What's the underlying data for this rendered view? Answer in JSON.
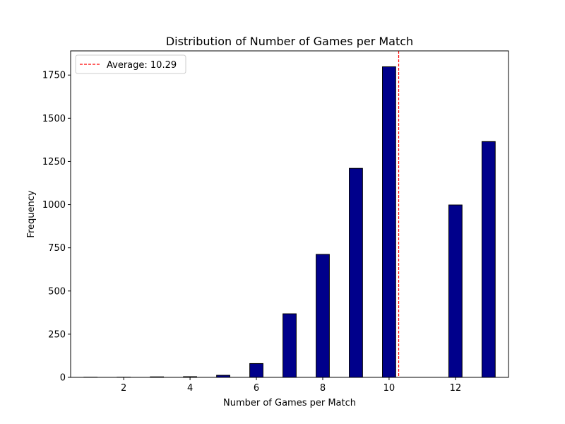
{
  "chart_data": {
    "type": "bar",
    "title": "Distribution of Number of Games per Match",
    "xlabel": "Number of Games per Match",
    "ylabel": "Frequency",
    "xlim": [
      0.4,
      13.6
    ],
    "ylim": [
      0,
      1890
    ],
    "xticks": [
      2,
      4,
      6,
      8,
      10,
      12
    ],
    "yticks": [
      0,
      250,
      500,
      750,
      1000,
      1250,
      1500,
      1750
    ],
    "bar_width": 0.4,
    "x": [
      1,
      2,
      3,
      4,
      5,
      6,
      7,
      8,
      9,
      10,
      11,
      12,
      13
    ],
    "values": [
      1,
      1,
      3,
      4,
      12,
      80,
      368,
      712,
      1210,
      1798,
      0,
      998,
      1365
    ],
    "bar_color": "#00008b",
    "edge_color": "#000000",
    "average": {
      "value": 10.29,
      "label": "Average: 10.29",
      "color": "#ff0000",
      "style": "dashed"
    },
    "legend": {
      "position": "top-left",
      "entries": [
        "Average: 10.29"
      ]
    },
    "grid": false
  }
}
